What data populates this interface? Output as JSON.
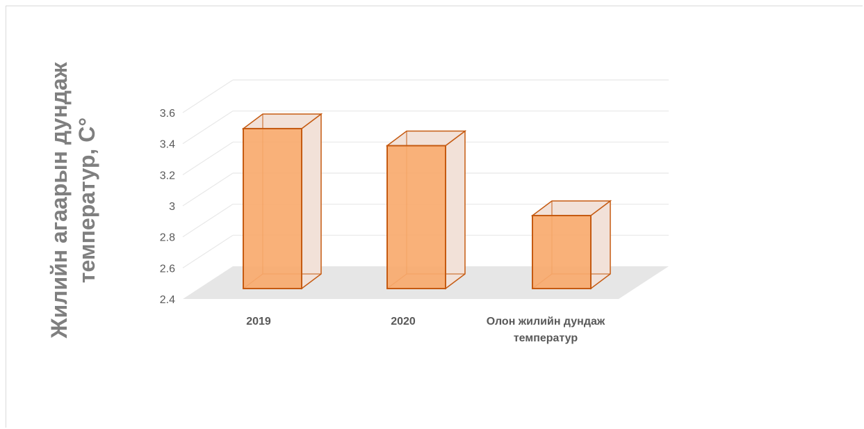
{
  "chart_data": {
    "type": "bar",
    "style": "3d-column",
    "title": "",
    "ylabel": "Жилийн агаарын дундаж температур, С°",
    "xlabel": "",
    "categories": [
      "2019",
      "2020",
      "Олон жилийн дундаж температур"
    ],
    "values": [
      3.43,
      3.32,
      2.87
    ],
    "ylim": [
      2.4,
      3.6
    ],
    "yticks": [
      "2.4",
      "2.6",
      "2.8",
      "3",
      "3.2",
      "3.4",
      "3.6"
    ],
    "grid": true,
    "legend": "none",
    "colors": {
      "bar_fill": "#f8a96a",
      "bar_outline": "#c55a11",
      "side_fill": "#f2e1d8",
      "floor": "#e6e6e6",
      "grid": "#e8e8e8",
      "text": "#595959",
      "axis_title": "#7f7f7f"
    }
  }
}
